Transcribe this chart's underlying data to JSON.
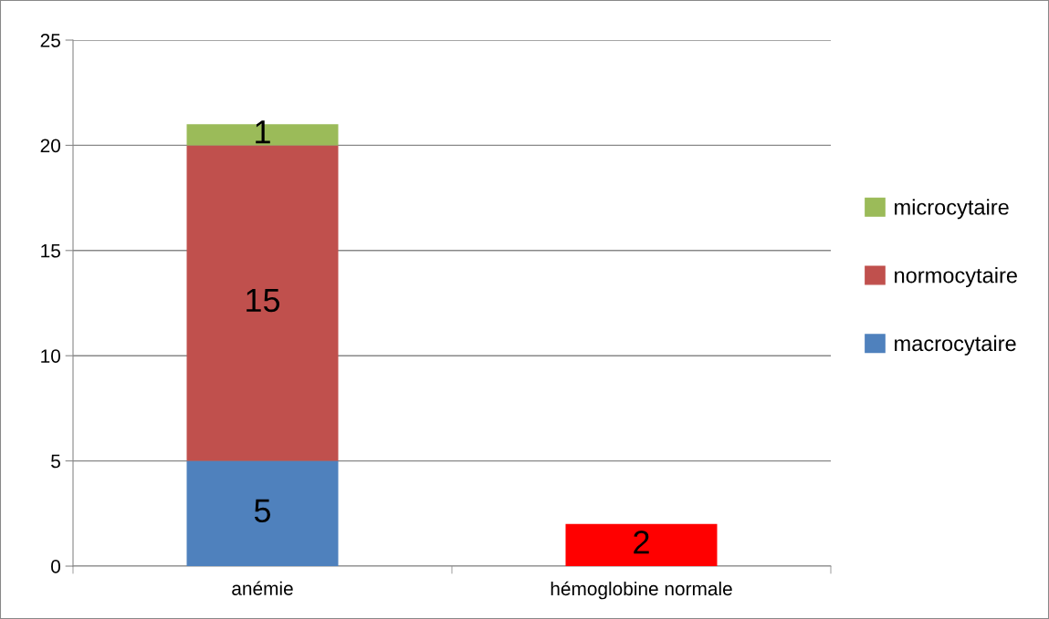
{
  "chart_data": {
    "type": "bar",
    "stacked": true,
    "categories": [
      "anémie",
      "hémoglobine normale"
    ],
    "series": [
      {
        "name": "macrocytaire",
        "color": "#4f81bd",
        "values": [
          5,
          null
        ]
      },
      {
        "name": "normocytaire",
        "color": "#c0504d",
        "colors": [
          "#c0504d",
          "#ff0000"
        ],
        "values": [
          15,
          2
        ]
      },
      {
        "name": "microcytaire",
        "color": "#9bbb59",
        "values": [
          1,
          null
        ]
      }
    ],
    "ylim": [
      0,
      25
    ],
    "yticks": [
      0,
      5,
      10,
      15,
      20,
      25
    ],
    "grid": "y",
    "legend": "right",
    "data_labels": true
  }
}
